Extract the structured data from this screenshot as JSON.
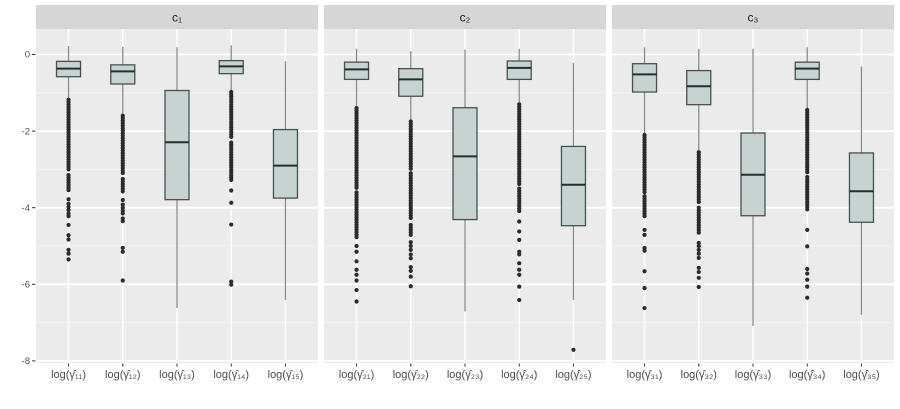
{
  "chart_data": {
    "type": "boxplot",
    "title": "",
    "xlabel": "",
    "ylabel": "",
    "background": "#ffffff",
    "y_axis": {
      "tick_labels": [
        "0",
        "-2",
        "-4",
        "-6",
        "-8"
      ],
      "tick_values": [
        0,
        -2,
        -4,
        -6,
        -8
      ],
      "minor_values": [
        -1,
        -3,
        -5,
        -7
      ],
      "range": [
        0.67,
        -8.06
      ],
      "grid": "on"
    },
    "style": {
      "panel_bg": "#ebebeb",
      "strip_bg": "#d6d6d6",
      "strip_text": "#1a1a1a",
      "grid_major": "#ffffff",
      "grid_minor": "#f5f5f5",
      "box_fill": "#c7d3d0",
      "box_border": "#46524f",
      "median_color": "#22302d",
      "whisker_color": "#8a8a8a",
      "outlier_color": "#2b2b2b",
      "axis_text": "#4d4d4d",
      "tick_mark": "#333333"
    },
    "facets": [
      {
        "label": "c₁",
        "boxes": [
          {
            "label": "log(γ̂₁₁)",
            "whisker_high": 0.22,
            "q3": -0.18,
            "median": -0.37,
            "q1": -0.58,
            "whisker_low": -1.15,
            "outliers_dense": [
              [
                -1.18,
                -3.05
              ],
              [
                -3.15,
                -3.55
              ]
            ],
            "outliers": [
              -3.78,
              -3.9,
              -3.98,
              -4.06,
              -4.15,
              -4.22,
              -4.45,
              -4.72,
              -4.83,
              -5.1,
              -5.2,
              -5.35
            ]
          },
          {
            "label": "log(γ̂₁₂)",
            "whisker_high": 0.2,
            "q3": -0.27,
            "median": -0.44,
            "q1": -0.77,
            "whisker_low": -1.55,
            "outliers_dense": [
              [
                -1.6,
                -3.1
              ],
              [
                -3.25,
                -3.6
              ]
            ],
            "outliers": [
              -3.8,
              -3.92,
              -4.0,
              -4.08,
              -4.15,
              -4.28,
              -4.35,
              -5.05,
              -5.15,
              -5.9
            ]
          },
          {
            "label": "log(γ̂₁₃)",
            "whisker_high": 0.19,
            "q3": -0.94,
            "median": -2.29,
            "q1": -3.79,
            "whisker_low": -6.62,
            "outliers_dense": [],
            "outliers": []
          },
          {
            "label": "log(γ̂₁₄)",
            "whisker_high": 0.24,
            "q3": -0.16,
            "median": -0.31,
            "q1": -0.5,
            "whisker_low": -0.95,
            "outliers_dense": [
              [
                -0.98,
                -2.2
              ],
              [
                -2.3,
                -3.3
              ]
            ],
            "outliers": [
              -3.55,
              -3.87,
              -4.44,
              -5.93,
              -6.01
            ]
          },
          {
            "label": "log(γ̂₁₅)",
            "whisker_high": -0.18,
            "q3": -1.96,
            "median": -2.9,
            "q1": -3.75,
            "whisker_low": -6.41,
            "outliers_dense": [],
            "outliers": []
          }
        ]
      },
      {
        "label": "c₂",
        "boxes": [
          {
            "label": "log(γ̂₂₁)",
            "whisker_high": 0.15,
            "q3": -0.2,
            "median": -0.39,
            "q1": -0.65,
            "whisker_low": -1.35,
            "outliers_dense": [
              [
                -1.4,
                -3.5
              ],
              [
                -3.6,
                -4.8
              ]
            ],
            "outliers": [
              -5.0,
              -5.15,
              -5.4,
              -5.62,
              -5.75,
              -5.9,
              -6.15,
              -6.45
            ]
          },
          {
            "label": "log(γ̂₂₂)",
            "whisker_high": 0.09,
            "q3": -0.37,
            "median": -0.65,
            "q1": -1.09,
            "whisker_low": -1.7,
            "outliers_dense": [
              [
                -1.75,
                -3.0
              ],
              [
                -3.1,
                -4.3
              ],
              [
                -4.45,
                -4.75
              ]
            ],
            "outliers": [
              -4.9,
              -5.0,
              -5.1,
              -5.22,
              -5.32,
              -5.55,
              -5.65,
              -5.8,
              -6.05
            ]
          },
          {
            "label": "log(γ̂₂₃)",
            "whisker_high": 0.13,
            "q3": -1.39,
            "median": -2.66,
            "q1": -4.31,
            "whisker_low": -6.71,
            "outliers_dense": [],
            "outliers": []
          },
          {
            "label": "log(γ̂₂₄)",
            "whisker_high": 0.15,
            "q3": -0.17,
            "median": -0.35,
            "q1": -0.65,
            "whisker_low": -1.25,
            "outliers_dense": [
              [
                -1.3,
                -3.4
              ],
              [
                -3.5,
                -4.1
              ]
            ],
            "outliers": [
              -4.36,
              -4.62,
              -4.84,
              -5.15,
              -5.22,
              -5.45,
              -5.62,
              -5.75,
              -6.06,
              -6.41
            ]
          },
          {
            "label": "log(γ̂₂₅)",
            "whisker_high": -0.22,
            "q3": -2.4,
            "median": -3.4,
            "q1": -4.47,
            "whisker_low": -6.41,
            "outliers_dense": [],
            "outliers": [
              -7.71
            ]
          }
        ]
      },
      {
        "label": "c₃",
        "boxes": [
          {
            "label": "log(γ̂₃₁)",
            "whisker_high": 0.19,
            "q3": -0.24,
            "median": -0.52,
            "q1": -0.98,
            "whisker_low": -2.05,
            "outliers_dense": [
              [
                -2.1,
                -3.6
              ],
              [
                -3.7,
                -4.27
              ]
            ],
            "outliers": [
              -4.58,
              -4.71,
              -5.05,
              -5.12,
              -5.66,
              -6.1,
              -6.62
            ]
          },
          {
            "label": "log(γ̂₃₂)",
            "whisker_high": 0.15,
            "q3": -0.42,
            "median": -0.83,
            "q1": -1.31,
            "whisker_low": -2.5,
            "outliers_dense": [
              [
                -2.55,
                -3.9
              ],
              [
                -4.0,
                -4.71
              ]
            ],
            "outliers": [
              -4.92,
              -5.0,
              -5.1,
              -5.2,
              -5.31,
              -5.57,
              -5.68,
              -5.83,
              -6.07
            ]
          },
          {
            "label": "log(γ̂₃₃)",
            "whisker_high": 0.15,
            "q3": -2.05,
            "median": -3.14,
            "q1": -4.21,
            "whisker_low": -7.09,
            "outliers_dense": [],
            "outliers": []
          },
          {
            "label": "log(γ̂₃₄)",
            "whisker_high": 0.19,
            "q3": -0.2,
            "median": -0.37,
            "q1": -0.65,
            "whisker_low": -1.4,
            "outliers_dense": [
              [
                -1.45,
                -3.1
              ],
              [
                -3.2,
                -4.05
              ]
            ],
            "outliers": [
              -4.58,
              -5.01,
              -5.6,
              -5.72,
              -5.88,
              -6.06,
              -6.35
            ]
          },
          {
            "label": "log(γ̂₃₅)",
            "whisker_high": -0.31,
            "q3": -2.57,
            "median": -3.57,
            "q1": -4.38,
            "whisker_low": -6.8,
            "outliers_dense": [],
            "outliers": []
          }
        ]
      }
    ]
  }
}
